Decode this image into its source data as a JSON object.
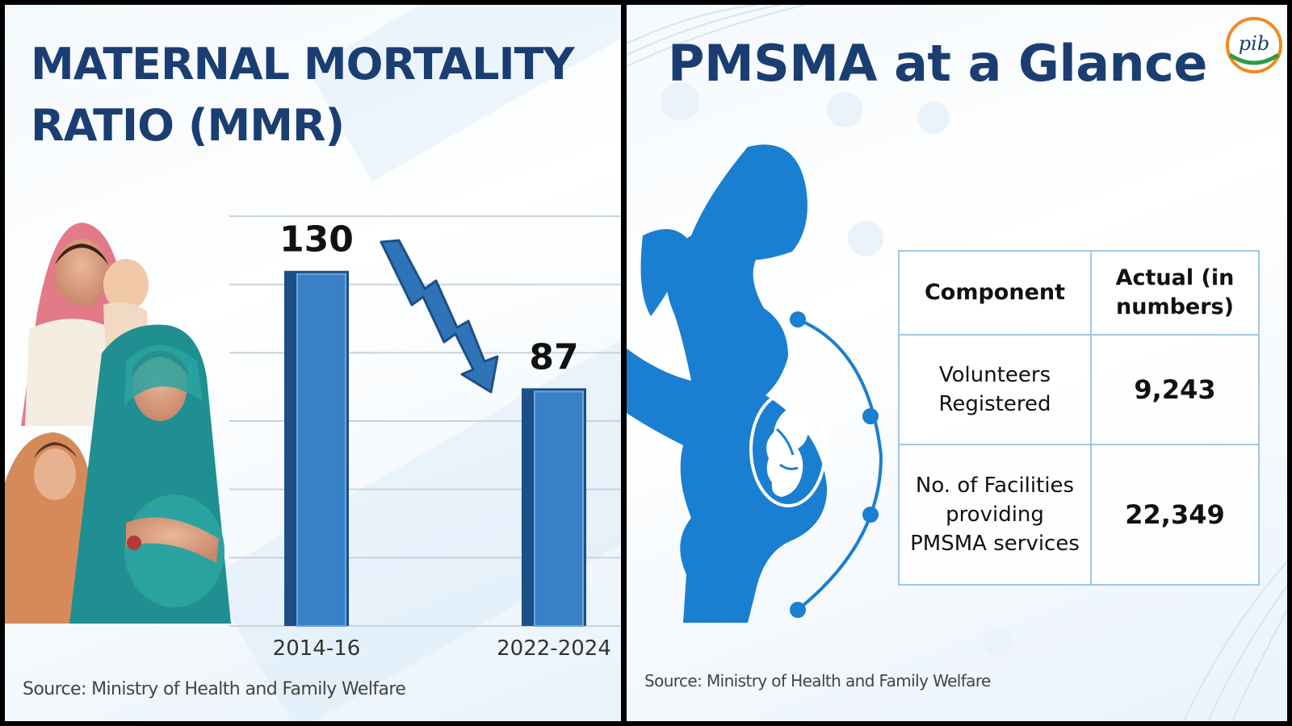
{
  "left_panel": {
    "title": "MATERNAL MORTALITY RATIO (MMR)",
    "source": "Source: Ministry of Health and Family Welfare",
    "trend_icon": "down-trend-arrow-icon",
    "illustration": "mother-and-child-photo-collage"
  },
  "chart_data": {
    "type": "bar",
    "title": "MATERNAL MORTALITY RATIO (MMR)",
    "categories": [
      "2014-16",
      "2022-2024"
    ],
    "values": [
      130,
      87
    ],
    "data_labels": [
      "130",
      "87"
    ],
    "xlabel": "",
    "ylabel": "",
    "ylim": [
      0,
      150
    ],
    "grid": true,
    "colors": {
      "bar": "#3a80c6",
      "bar_edge": "#1c4f86",
      "trend_arrow": "#2f74b8"
    }
  },
  "right_panel": {
    "title": "PMSMA at a Glance",
    "logo_text": "pib",
    "source": "Source: Ministry of Health and Family Welfare",
    "illustration": "pregnant-woman-silhouette-icon",
    "table": {
      "headers": [
        "Component",
        "Actual (in numbers)"
      ],
      "rows": [
        [
          "Volunteers Registered",
          "9,243"
        ],
        [
          "No. of Facilities providing PMSMA services",
          "22,349"
        ]
      ]
    }
  },
  "colors": {
    "title": "#1b3e72",
    "silhouette": "#1a7fd0",
    "table_border": "#9fc7e6"
  }
}
